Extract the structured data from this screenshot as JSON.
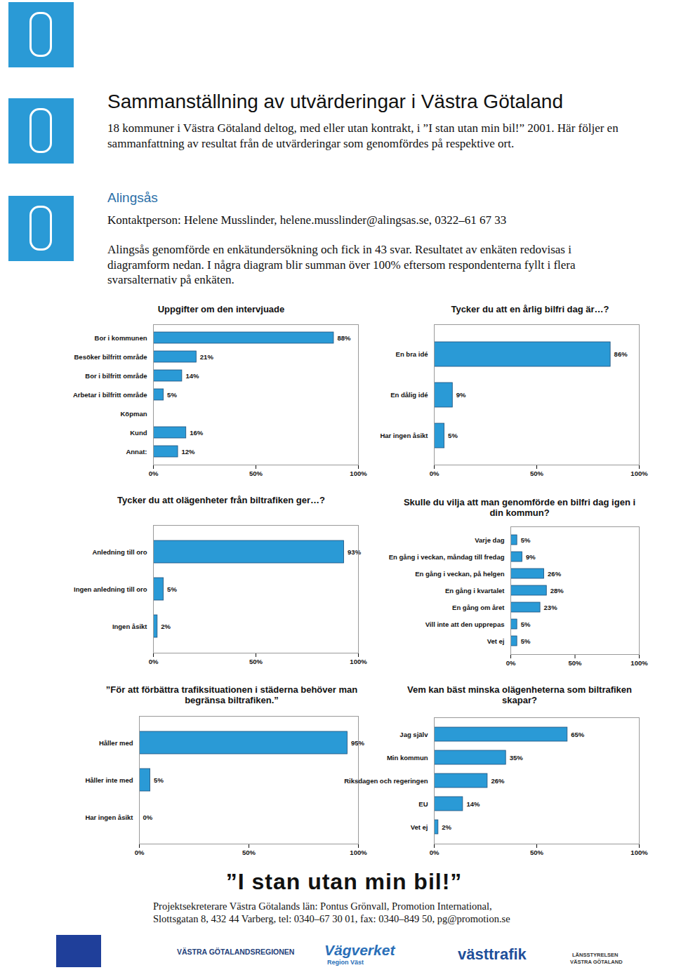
{
  "document": {
    "title": "Sammanställning av utvärderingar i Västra Götaland",
    "intro": "18 kommuner i Västra Götaland deltog, med eller utan kontrakt, i ”I stan utan min bil!” 2001. Här följer en sammanfattning av resultat från de utvärderingar som genomfördes på respektive ort.",
    "section": "Alingsås",
    "contact": "Kontaktperson: Helene Musslinder, helene.musslinder@alingsas.se, 0322–61 67 33",
    "description": "Alingsås genomförde en enkätundersökning och fick in 43 svar. Resultatet av enkäten redovisas i diagramform nedan. I några diagram blir summan över 100% eftersom respondenterna fyllt i flera svarsalternativ på enkäten.",
    "slogan": "”I stan utan min bil!”",
    "footer": [
      "Projektsekreterare Västra Götalands län: Pontus Grönvall, Promotion International,",
      "Slottsgatan 8, 432 44 Varberg, tel: 0340–67 30 01, fax: 0340–849 50, pg@promotion.se"
    ],
    "logos": [
      "VÄSTRA GÖTALANDSREGIONEN",
      "Vägverket",
      "Region Väst",
      "västtrafik",
      "LÄNSSTYRELSEN",
      "VÄSTRA GÖTALAND"
    ]
  },
  "chart_data": [
    {
      "type": "bar",
      "orientation": "horizontal",
      "title": "Uppgifter om den intervjuade",
      "categories": [
        "Bor i kommunen",
        "Besöker bilfritt område",
        "Bor i bilfritt område",
        "Arbetar i bilfritt område",
        "Köpman",
        "Kund",
        "Annat:"
      ],
      "values": [
        88,
        21,
        14,
        5,
        null,
        16,
        12
      ],
      "value_labels": [
        "88%",
        "21%",
        "14%",
        "5%",
        null,
        "16%",
        "12%"
      ],
      "color": "#2a9ad6",
      "xlim": [
        0,
        100
      ],
      "xticks": [
        {
          "value": 0,
          "label": "0%"
        },
        {
          "value": 50,
          "label": "50%"
        },
        {
          "value": 100,
          "label": "100%"
        }
      ],
      "data_labels": true,
      "grid": false
    },
    {
      "type": "bar",
      "orientation": "horizontal",
      "title": "Tycker du att en årlig bilfri dag är…?",
      "categories": [
        "En bra idé",
        "En dålig idé",
        "Har ingen åsikt"
      ],
      "values": [
        86,
        9,
        5
      ],
      "value_labels": [
        "86%",
        "9%",
        "5%"
      ],
      "color": "#2a9ad6",
      "xlim": [
        0,
        100
      ],
      "xticks": [
        {
          "value": 0,
          "label": "0%"
        },
        {
          "value": 50,
          "label": "50%"
        },
        {
          "value": 100,
          "label": "100%"
        }
      ],
      "data_labels": true,
      "grid": false
    },
    {
      "type": "bar",
      "orientation": "horizontal",
      "title": "Tycker du att olägenheter från biltrafiken ger…?",
      "categories": [
        "Anledning till oro",
        "Ingen anledning till oro",
        "Ingen åsikt"
      ],
      "values": [
        93,
        5,
        2
      ],
      "value_labels": [
        "93%",
        "5%",
        "2%"
      ],
      "color": "#2a9ad6",
      "xlim": [
        0,
        100
      ],
      "xticks": [
        {
          "value": 0,
          "label": "0%"
        },
        {
          "value": 50,
          "label": "50%"
        },
        {
          "value": 100,
          "label": "100%"
        }
      ],
      "data_labels": true,
      "grid": false
    },
    {
      "type": "bar",
      "orientation": "horizontal",
      "title": "Skulle du vilja att man genomförde en bilfri dag igen i din kommun?",
      "categories": [
        "Varje dag",
        "En gång i veckan, måndag till fredag",
        "En gång i veckan, på helgen",
        "En gång i kvartalet",
        "En gång om året",
        "Vill inte att den upprepas",
        "Vet ej"
      ],
      "values": [
        5,
        9,
        26,
        28,
        23,
        5,
        5
      ],
      "value_labels": [
        "5%",
        "9%",
        "26%",
        "28%",
        "23%",
        "5%",
        "5%"
      ],
      "color": "#2a9ad6",
      "xlim": [
        0,
        100
      ],
      "xticks": [
        {
          "value": 0,
          "label": "0%"
        },
        {
          "value": 50,
          "label": "50%"
        },
        {
          "value": 100,
          "label": "100%"
        }
      ],
      "data_labels": true,
      "grid": false
    },
    {
      "type": "bar",
      "orientation": "horizontal",
      "title": "”För att förbättra trafiksituationen i städerna behöver man begränsa biltrafiken.”",
      "categories": [
        "Håller med",
        "Håller inte med",
        "Har ingen åsikt"
      ],
      "values": [
        95,
        5,
        0
      ],
      "value_labels": [
        "95%",
        "5%",
        "0%"
      ],
      "color": "#2a9ad6",
      "xlim": [
        0,
        100
      ],
      "xticks": [
        {
          "value": 0,
          "label": "0%"
        },
        {
          "value": 50,
          "label": "50%"
        },
        {
          "value": 100,
          "label": "100%"
        }
      ],
      "data_labels": true,
      "grid": false
    },
    {
      "type": "bar",
      "orientation": "horizontal",
      "title": "Vem kan bäst minska olägenheterna som biltrafiken skapar?",
      "categories": [
        "Jag själv",
        "Min kommun",
        "Riksdagen och regeringen",
        "EU",
        "Vet ej"
      ],
      "values": [
        65,
        35,
        26,
        14,
        2
      ],
      "value_labels": [
        "65%",
        "35%",
        "26%",
        "14%",
        "2%"
      ],
      "color": "#2a9ad6",
      "xlim": [
        0,
        100
      ],
      "xticks": [
        {
          "value": 0,
          "label": "0%"
        },
        {
          "value": 50,
          "label": "50%"
        },
        {
          "value": 100,
          "label": "100%"
        }
      ],
      "data_labels": true,
      "grid": false
    }
  ]
}
